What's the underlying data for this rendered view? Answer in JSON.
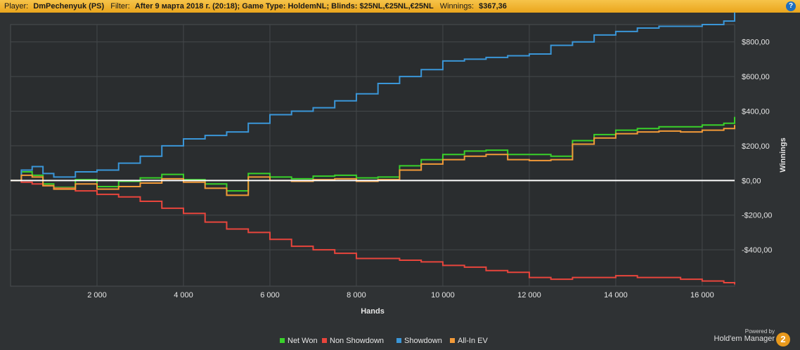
{
  "header": {
    "player_label": "Player:",
    "player_value": "DmPechenyuk (PS)",
    "filter_label": "Filter:",
    "filter_value": "After 9 марта 2018 г. (20:18); Game Type: HoldemNL; Blinds: $25NL,€25NL,€25NL",
    "winnings_label": "Winnings:",
    "winnings_value": "$367,36",
    "help_icon": "?"
  },
  "branding": {
    "powered_by": "Powered by",
    "product": "Hold'em Manager",
    "badge": "2"
  },
  "chart_data": {
    "type": "line",
    "xlabel": "Hands",
    "ylabel": "Winnings",
    "xlim": [
      0,
      16750
    ],
    "ylim": [
      -610,
      900
    ],
    "x_ticks": [
      2000,
      4000,
      6000,
      8000,
      10000,
      12000,
      14000,
      16000
    ],
    "x_tick_labels": [
      "2 000",
      "4 000",
      "6 000",
      "8 000",
      "10 000",
      "12 000",
      "14 000",
      "16 000"
    ],
    "y_ticks": [
      -400,
      -200,
      0,
      200,
      400,
      600,
      800
    ],
    "y_tick_labels": [
      "-$400,00",
      "-$200,00",
      "$0,00",
      "$200,00",
      "$400,00",
      "$600,00",
      "$800,00"
    ],
    "grid": true,
    "legend_position": "bottom",
    "x": [
      0,
      250,
      500,
      750,
      1000,
      1500,
      2000,
      2500,
      3000,
      3500,
      4000,
      4500,
      5000,
      5500,
      6000,
      6500,
      7000,
      7500,
      8000,
      8500,
      9000,
      9500,
      10000,
      10500,
      11000,
      11500,
      12000,
      12500,
      13000,
      13500,
      14000,
      14500,
      15000,
      15500,
      16000,
      16500,
      16750
    ],
    "series": [
      {
        "name": "Net Won",
        "color": "#39d12a",
        "values": [
          0,
          50,
          30,
          -20,
          -40,
          5,
          -35,
          -5,
          15,
          35,
          5,
          -20,
          -60,
          40,
          20,
          10,
          25,
          30,
          15,
          20,
          85,
          120,
          150,
          170,
          175,
          150,
          150,
          140,
          230,
          265,
          290,
          300,
          310,
          310,
          320,
          330,
          367
        ]
      },
      {
        "name": "Non Showdown",
        "color": "#e8453c",
        "values": [
          0,
          -10,
          -20,
          -30,
          -45,
          -60,
          -80,
          -95,
          -120,
          -160,
          -190,
          -240,
          -280,
          -300,
          -340,
          -380,
          -400,
          -420,
          -450,
          -450,
          -460,
          -470,
          -490,
          -500,
          -520,
          -530,
          -560,
          -570,
          -560,
          -560,
          -550,
          -560,
          -560,
          -570,
          -580,
          -590,
          -600
        ]
      },
      {
        "name": "Showdown",
        "color": "#3a96d8",
        "values": [
          0,
          60,
          80,
          40,
          20,
          50,
          60,
          100,
          140,
          200,
          240,
          260,
          280,
          330,
          380,
          400,
          420,
          460,
          500,
          560,
          600,
          640,
          690,
          700,
          710,
          720,
          730,
          780,
          800,
          840,
          860,
          880,
          890,
          890,
          900,
          920,
          970
        ]
      },
      {
        "name": "All-In EV",
        "color": "#f29a38",
        "values": [
          0,
          30,
          20,
          -30,
          -50,
          -20,
          -50,
          -35,
          -15,
          10,
          -10,
          -45,
          -85,
          20,
          0,
          -5,
          5,
          10,
          -5,
          5,
          60,
          95,
          120,
          140,
          150,
          120,
          115,
          120,
          210,
          245,
          270,
          280,
          285,
          280,
          290,
          300,
          320
        ]
      }
    ]
  }
}
